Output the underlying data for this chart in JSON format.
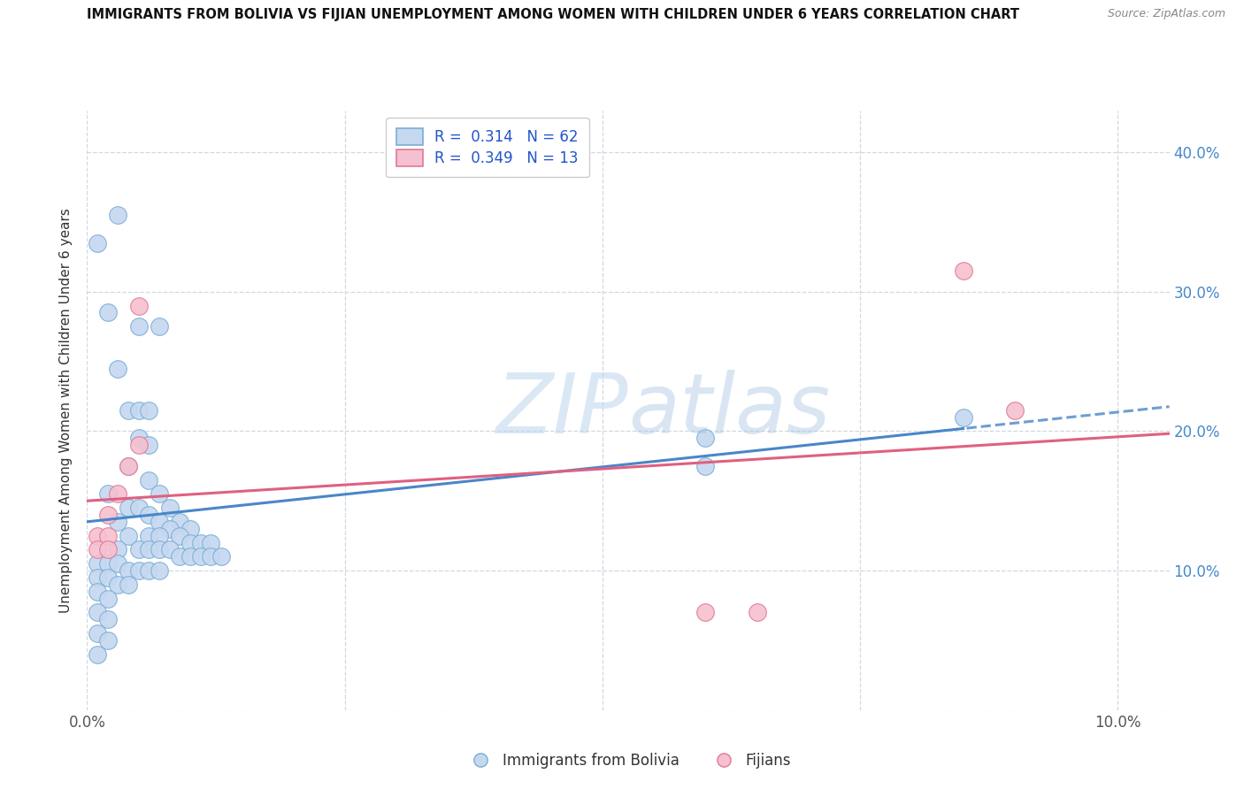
{
  "title": "IMMIGRANTS FROM BOLIVIA VS FIJIAN UNEMPLOYMENT AMONG WOMEN WITH CHILDREN UNDER 6 YEARS CORRELATION CHART",
  "source": "Source: ZipAtlas.com",
  "ylabel": "Unemployment Among Women with Children Under 6 years",
  "legend_entry1": "R =  0.314   N = 62",
  "legend_entry2": "R =  0.349   N = 13",
  "legend_label1": "Immigrants from Bolivia",
  "legend_label2": "Fijians",
  "color_blue_fill": "#c5d8f0",
  "color_blue_edge": "#7aadd4",
  "color_pink_fill": "#f5c0cf",
  "color_pink_edge": "#e07898",
  "color_line_blue": "#4a86c8",
  "color_line_pink": "#e06080",
  "watermark_color": "#d8e8f5",
  "blue_points": [
    [
      0.001,
      0.335
    ],
    [
      0.003,
      0.355
    ],
    [
      0.002,
      0.285
    ],
    [
      0.003,
      0.245
    ],
    [
      0.005,
      0.275
    ],
    [
      0.007,
      0.275
    ],
    [
      0.004,
      0.215
    ],
    [
      0.005,
      0.215
    ],
    [
      0.006,
      0.215
    ],
    [
      0.005,
      0.195
    ],
    [
      0.006,
      0.19
    ],
    [
      0.004,
      0.175
    ],
    [
      0.006,
      0.165
    ],
    [
      0.002,
      0.155
    ],
    [
      0.007,
      0.155
    ],
    [
      0.004,
      0.145
    ],
    [
      0.005,
      0.145
    ],
    [
      0.006,
      0.14
    ],
    [
      0.008,
      0.145
    ],
    [
      0.003,
      0.135
    ],
    [
      0.007,
      0.135
    ],
    [
      0.009,
      0.135
    ],
    [
      0.008,
      0.13
    ],
    [
      0.01,
      0.13
    ],
    [
      0.004,
      0.125
    ],
    [
      0.006,
      0.125
    ],
    [
      0.007,
      0.125
    ],
    [
      0.009,
      0.125
    ],
    [
      0.01,
      0.12
    ],
    [
      0.011,
      0.12
    ],
    [
      0.012,
      0.12
    ],
    [
      0.003,
      0.115
    ],
    [
      0.005,
      0.115
    ],
    [
      0.006,
      0.115
    ],
    [
      0.007,
      0.115
    ],
    [
      0.008,
      0.115
    ],
    [
      0.009,
      0.11
    ],
    [
      0.01,
      0.11
    ],
    [
      0.011,
      0.11
    ],
    [
      0.012,
      0.11
    ],
    [
      0.013,
      0.11
    ],
    [
      0.001,
      0.105
    ],
    [
      0.002,
      0.105
    ],
    [
      0.003,
      0.105
    ],
    [
      0.004,
      0.1
    ],
    [
      0.005,
      0.1
    ],
    [
      0.006,
      0.1
    ],
    [
      0.007,
      0.1
    ],
    [
      0.001,
      0.095
    ],
    [
      0.002,
      0.095
    ],
    [
      0.003,
      0.09
    ],
    [
      0.004,
      0.09
    ],
    [
      0.001,
      0.085
    ],
    [
      0.002,
      0.08
    ],
    [
      0.001,
      0.07
    ],
    [
      0.002,
      0.065
    ],
    [
      0.001,
      0.055
    ],
    [
      0.002,
      0.05
    ],
    [
      0.001,
      0.04
    ],
    [
      0.06,
      0.195
    ],
    [
      0.06,
      0.175
    ],
    [
      0.085,
      0.21
    ]
  ],
  "pink_points": [
    [
      0.001,
      0.125
    ],
    [
      0.002,
      0.125
    ],
    [
      0.001,
      0.115
    ],
    [
      0.002,
      0.115
    ],
    [
      0.002,
      0.14
    ],
    [
      0.003,
      0.155
    ],
    [
      0.004,
      0.175
    ],
    [
      0.005,
      0.19
    ],
    [
      0.005,
      0.29
    ],
    [
      0.06,
      0.07
    ],
    [
      0.065,
      0.07
    ],
    [
      0.085,
      0.315
    ],
    [
      0.09,
      0.215
    ]
  ],
  "xlim": [
    0.0,
    0.105
  ],
  "ylim": [
    0.0,
    0.43
  ],
  "x_ticks": [
    0.0,
    0.025,
    0.05,
    0.075,
    0.1
  ],
  "x_tick_labels": [
    "0.0%",
    "",
    "",
    "",
    "10.0%"
  ],
  "y_ticks": [
    0.0,
    0.1,
    0.2,
    0.3,
    0.4
  ],
  "y_tick_labels": [
    "",
    "10.0%",
    "20.0%",
    "30.0%",
    "40.0%"
  ],
  "figsize": [
    14.06,
    8.92
  ],
  "dpi": 100
}
